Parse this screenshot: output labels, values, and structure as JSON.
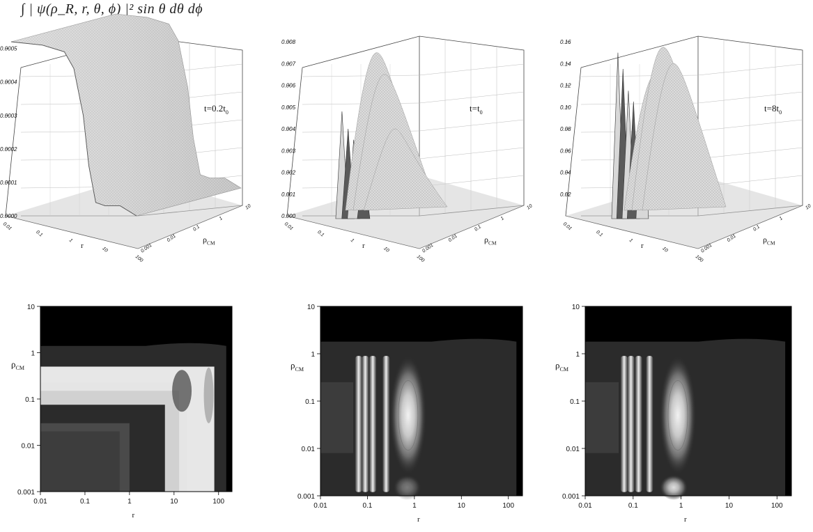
{
  "header": {
    "formula": "∫ | ψ(ρ_R, r, θ, ϕ) |² sin θ dθ dϕ"
  },
  "chart_data": [
    {
      "type": "surface",
      "panel": "top-left",
      "annotation": "t=0.2t0",
      "xlabel": "r",
      "ylabel": "ρCM",
      "x_ticks": [
        "0.01",
        "0.1",
        "1",
        "10",
        "100"
      ],
      "y_ticks": [
        "0.001",
        "0.01",
        "0.1",
        "1",
        "10"
      ],
      "z_ticks": [
        "0.0000",
        "0.0001",
        "0.0002",
        "0.0003",
        "0.0004",
        "0.0005"
      ],
      "zlim": [
        0,
        0.00052
      ],
      "profile_r": [
        0.01,
        0.1,
        0.5,
        1,
        2,
        3,
        5,
        10,
        30,
        100
      ],
      "profile_z": [
        0.00052,
        0.00051,
        0.00049,
        0.00044,
        0.0003,
        0.00015,
        4e-05,
        3e-05,
        3e-05,
        0.0
      ]
    },
    {
      "type": "surface",
      "panel": "top-middle",
      "annotation": "t=t0",
      "xlabel": "r",
      "ylabel": "ρCM",
      "x_ticks": [
        "0.01",
        "0.1",
        "1",
        "10",
        "100"
      ],
      "y_ticks": [
        "0.001",
        "0.01",
        "0.1",
        "1",
        "10"
      ],
      "z_ticks": [
        "0.000",
        "0.001",
        "0.002",
        "0.003",
        "0.004",
        "0.005",
        "0.006",
        "0.007",
        "0.008"
      ],
      "zlim": [
        0,
        0.008
      ],
      "peak_r": [
        0.06,
        0.09,
        0.13,
        0.25,
        0.6,
        1.0,
        2.0
      ],
      "peak_z": [
        0.0048,
        0.004,
        0.0035,
        0.0022,
        0.0075,
        0.0065,
        0.004
      ]
    },
    {
      "type": "surface",
      "panel": "top-right",
      "annotation": "t=8t0",
      "xlabel": "r",
      "ylabel": "ρCM",
      "x_ticks": [
        "0.01",
        "0.1",
        "1",
        "10",
        "100"
      ],
      "y_ticks": [
        "0.001",
        "0.01",
        "0.1",
        "1",
        "10"
      ],
      "z_ticks": [
        "0.02",
        "0.04",
        "0.06",
        "0.08",
        "0.10",
        "0.12",
        "0.14",
        "0.16"
      ],
      "zlim": [
        0,
        0.16
      ],
      "peak_r": [
        0.05,
        0.07,
        0.1,
        0.14,
        0.25,
        0.6,
        1.0,
        2.0
      ],
      "peak_z": [
        0.15,
        0.135,
        0.115,
        0.105,
        0.1,
        0.13,
        0.155,
        0.14
      ]
    },
    {
      "type": "heatmap",
      "panel": "bottom-left",
      "xlabel": "r",
      "ylabel": "ρCM",
      "x_ticks": [
        "0.01",
        "0.1",
        "1",
        "10",
        "100"
      ],
      "y_ticks": [
        "0.001",
        "0.01",
        "0.1",
        "1",
        "10"
      ],
      "xlim": [
        0.01,
        200
      ],
      "ylim": [
        0.001,
        10
      ],
      "scale": "log-log"
    },
    {
      "type": "heatmap",
      "panel": "bottom-middle",
      "xlabel": "r",
      "ylabel": "ρCM",
      "x_ticks": [
        "0.01",
        "0.1",
        "1",
        "10",
        "100"
      ],
      "y_ticks": [
        "0.001",
        "0.01",
        "0.1",
        "1",
        "10"
      ],
      "xlim": [
        0.01,
        200
      ],
      "ylim": [
        0.001,
        10
      ],
      "scale": "log-log",
      "fringe_r": [
        0.065,
        0.09,
        0.13,
        0.25,
        0.6
      ]
    },
    {
      "type": "heatmap",
      "panel": "bottom-right",
      "xlabel": "r",
      "ylabel": "ρCM",
      "x_ticks": [
        "0.01",
        "0.1",
        "1",
        "10",
        "100"
      ],
      "y_ticks": [
        "0.001",
        "0.01",
        "0.1",
        "1",
        "10"
      ],
      "xlim": [
        0.01,
        200
      ],
      "ylim": [
        0.001,
        10
      ],
      "scale": "log-log",
      "fringe_r": [
        0.065,
        0.09,
        0.13,
        0.22,
        0.7
      ]
    }
  ]
}
